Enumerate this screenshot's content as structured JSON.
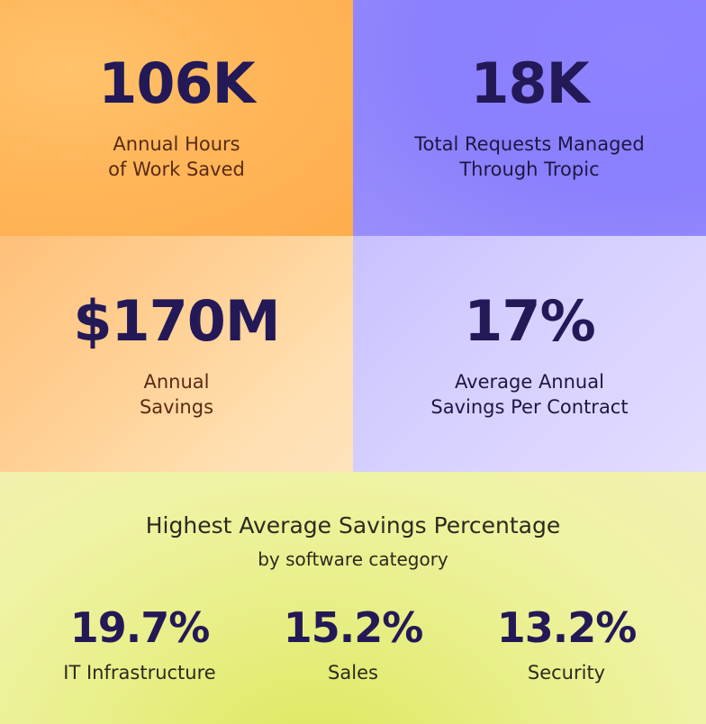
{
  "stats": {
    "hours": {
      "value": "106K",
      "label_line1": "Annual Hours",
      "label_line2": "of Work Saved"
    },
    "requests": {
      "value": "18K",
      "label_line1": "Total Requests Managed",
      "label_line2": "Through Tropic"
    },
    "savings": {
      "value": "$170M",
      "label_line1": "Annual",
      "label_line2": "Savings"
    },
    "contract": {
      "value": "17%",
      "label_line1": "Average Annual",
      "label_line2": "Savings Per Contract"
    }
  },
  "bottom": {
    "title": "Highest Average Savings Percentage",
    "subtitle": "by software category",
    "categories": [
      {
        "value": "19.7%",
        "name": "IT Infrastructure"
      },
      {
        "value": "15.2%",
        "name": "Sales"
      },
      {
        "value": "13.2%",
        "name": "Security"
      }
    ]
  },
  "colors": {
    "orange_tile": "#ffb65a",
    "purple_tile": "#8a7ffc",
    "light_orange_tile": "#ffd39c",
    "light_purple_tile": "#d6d0ff",
    "lime_panel": "#eef29f",
    "stat_text": "#231957"
  }
}
